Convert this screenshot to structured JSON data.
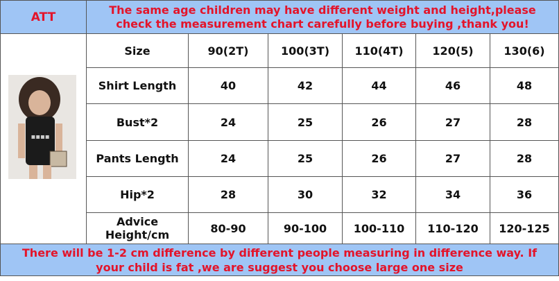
{
  "header": {
    "label": "ATT",
    "notice": "The same age children may have different weight and height,please check the measurement chart carefully before buying ,thank you!"
  },
  "table": {
    "rows": [
      [
        "Size",
        "90(2T)",
        "100(3T)",
        "110(4T)",
        "120(5)",
        "130(6)"
      ],
      [
        "Shirt Length",
        "40",
        "42",
        "44",
        "46",
        "48"
      ],
      [
        "Bust*2",
        "24",
        "25",
        "26",
        "27",
        "28"
      ],
      [
        "Pants Length",
        "24",
        "25",
        "26",
        "27",
        "28"
      ],
      [
        "Hip*2",
        "28",
        "30",
        "32",
        "34",
        "36"
      ],
      [
        "Advice Height/cm",
        "80-90",
        "90-100",
        "100-110",
        "110-120",
        "120-125"
      ]
    ]
  },
  "footer": {
    "note": "There will be 1-2 cm difference by different people measuring in difference way. If your child is fat ,we are suggest you choose large one size"
  }
}
